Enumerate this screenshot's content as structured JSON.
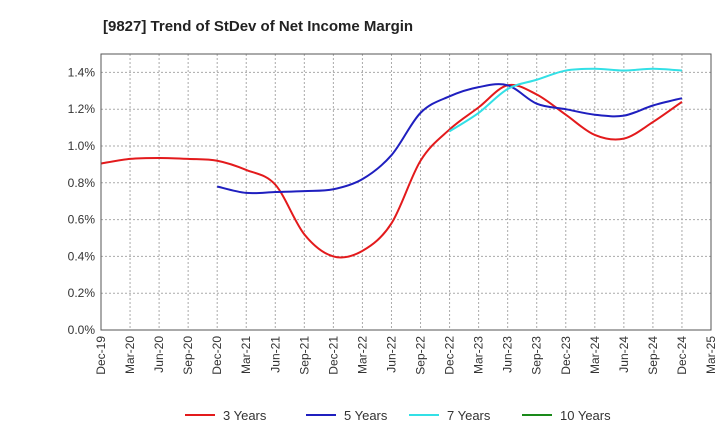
{
  "chart_data": {
    "type": "line",
    "title": "[9827]  Trend of StDev of Net Income Margin",
    "xlabel": "",
    "ylabel": "",
    "x": [
      "Dec-19",
      "Mar-20",
      "Jun-20",
      "Sep-20",
      "Dec-20",
      "Mar-21",
      "Jun-21",
      "Sep-21",
      "Dec-21",
      "Mar-22",
      "Jun-22",
      "Sep-22",
      "Dec-22",
      "Mar-23",
      "Jun-23",
      "Sep-23",
      "Dec-23",
      "Mar-24",
      "Jun-24",
      "Sep-24",
      "Dec-24",
      "Mar-25"
    ],
    "ylim": [
      0,
      1.5
    ],
    "yticks": [
      0.0,
      0.2,
      0.4,
      0.6,
      0.8,
      1.0,
      1.2,
      1.4
    ],
    "ytick_labels": [
      "0.0%",
      "0.2%",
      "0.4%",
      "0.6%",
      "0.8%",
      "1.0%",
      "1.2%",
      "1.4%"
    ],
    "grid": true,
    "legend_position": "bottom",
    "series": [
      {
        "name": "3 Years",
        "color": "#e31a1c",
        "values": [
          0.905,
          0.93,
          0.935,
          0.93,
          0.92,
          0.87,
          0.79,
          0.52,
          0.4,
          0.43,
          0.58,
          0.92,
          1.09,
          1.21,
          1.33,
          1.28,
          1.17,
          1.06,
          1.04,
          1.13,
          1.24,
          null
        ]
      },
      {
        "name": "5 Years",
        "color": "#1f1fbf",
        "values": [
          null,
          null,
          null,
          null,
          0.78,
          0.745,
          0.75,
          0.755,
          0.765,
          0.82,
          0.95,
          1.18,
          1.27,
          1.32,
          1.33,
          1.23,
          1.2,
          1.17,
          1.165,
          1.22,
          1.26,
          null
        ]
      },
      {
        "name": "7 Years",
        "color": "#33e0e6",
        "values": [
          null,
          null,
          null,
          null,
          null,
          null,
          null,
          null,
          null,
          null,
          null,
          null,
          1.08,
          1.18,
          1.31,
          1.36,
          1.41,
          1.42,
          1.41,
          1.42,
          1.41,
          null
        ]
      },
      {
        "name": "10 Years",
        "color": "#1a8a1a",
        "values": [
          null,
          null,
          null,
          null,
          null,
          null,
          null,
          null,
          null,
          null,
          null,
          null,
          null,
          null,
          null,
          null,
          null,
          null,
          null,
          null,
          null,
          null
        ]
      }
    ]
  }
}
